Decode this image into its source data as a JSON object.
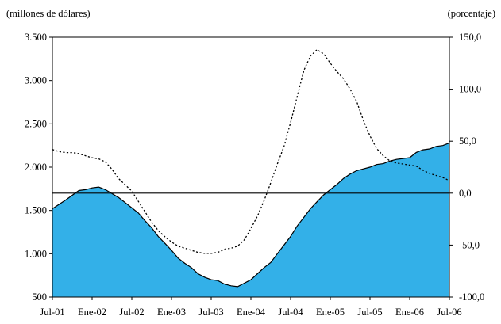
{
  "chart_data": {
    "type": "area",
    "left_axis": {
      "label": "(millones de dólares)",
      "ylim": [
        500,
        3500
      ],
      "ticks": [
        500,
        1000,
        1500,
        2000,
        2500,
        3000,
        3500
      ],
      "tick_labels": [
        "500",
        "1.000",
        "1.500",
        "2.000",
        "2.500",
        "3.000",
        "3.500"
      ]
    },
    "right_axis": {
      "label": "(porcentaje)",
      "ylim": [
        -100,
        150
      ],
      "ticks": [
        -100,
        -50,
        0,
        50,
        100,
        150
      ],
      "tick_labels": [
        "-100,0",
        "-50,0",
        "0,0",
        "50,0",
        "100,0",
        "150,0"
      ]
    },
    "x_axis": {
      "ticks": [
        0,
        6,
        12,
        18,
        24,
        30,
        36,
        42,
        48,
        54,
        60
      ],
      "tick_labels": [
        "Jul-01",
        "Ene-02",
        "Jul-02",
        "Ene-03",
        "Jul-03",
        "Ene-04",
        "Jul-04",
        "Ene-05",
        "Jul-05",
        "Ene-06",
        "Jul-06"
      ],
      "xlim": [
        0,
        60
      ]
    },
    "zero_reference_line": {
      "axis": "right",
      "value": 0
    },
    "series": [
      {
        "type": "area",
        "axis": "left",
        "color": "#33b0e8",
        "x": [
          0,
          2,
          4,
          5,
          6,
          7,
          8,
          10,
          11,
          12,
          13,
          14,
          15,
          16,
          17,
          18,
          19,
          20,
          21,
          22,
          23,
          24,
          25,
          26,
          27,
          28,
          30,
          31,
          32,
          33,
          34,
          35,
          36,
          37,
          38,
          39,
          40,
          41,
          42,
          43,
          44,
          45,
          46,
          47,
          48,
          49,
          50,
          51,
          52,
          53,
          54,
          55,
          56,
          57,
          58,
          59,
          60
        ],
        "values": [
          1520,
          1620,
          1730,
          1740,
          1760,
          1770,
          1740,
          1650,
          1590,
          1530,
          1470,
          1380,
          1300,
          1200,
          1120,
          1040,
          950,
          890,
          840,
          770,
          730,
          700,
          690,
          650,
          630,
          620,
          700,
          770,
          840,
          900,
          1000,
          1100,
          1200,
          1320,
          1420,
          1520,
          1600,
          1680,
          1740,
          1800,
          1870,
          1920,
          1960,
          1980,
          2000,
          2030,
          2040,
          2070,
          2090,
          2100,
          2110,
          2170,
          2200,
          2210,
          2240,
          2250,
          2280
        ]
      },
      {
        "type": "line",
        "style": "dotted",
        "axis": "right",
        "color": "#000000",
        "x": [
          0,
          1,
          2,
          3,
          4,
          5,
          6,
          7,
          8,
          9,
          10,
          11,
          12,
          13,
          14,
          15,
          16,
          17,
          18,
          19,
          20,
          21,
          22,
          23,
          24,
          25,
          26,
          27,
          28,
          29,
          30,
          31,
          32,
          33,
          34,
          35,
          36,
          37,
          38,
          39,
          40,
          41,
          42,
          43,
          44,
          45,
          46,
          47,
          48,
          49,
          50,
          51,
          52,
          53,
          54,
          55,
          56,
          57,
          58,
          59,
          60
        ],
        "values": [
          42,
          40,
          39,
          39,
          38,
          36,
          34,
          33,
          30,
          23,
          14,
          8,
          2,
          -8,
          -18,
          -28,
          -36,
          -42,
          -47,
          -51,
          -53,
          -55,
          -57,
          -58,
          -58,
          -57,
          -54,
          -53,
          -51,
          -45,
          -34,
          -22,
          -7,
          10,
          28,
          45,
          68,
          93,
          118,
          132,
          138,
          134,
          125,
          117,
          110,
          100,
          88,
          70,
          55,
          43,
          36,
          31,
          29,
          28,
          27,
          26,
          22,
          19,
          17,
          15,
          12
        ]
      }
    ]
  }
}
